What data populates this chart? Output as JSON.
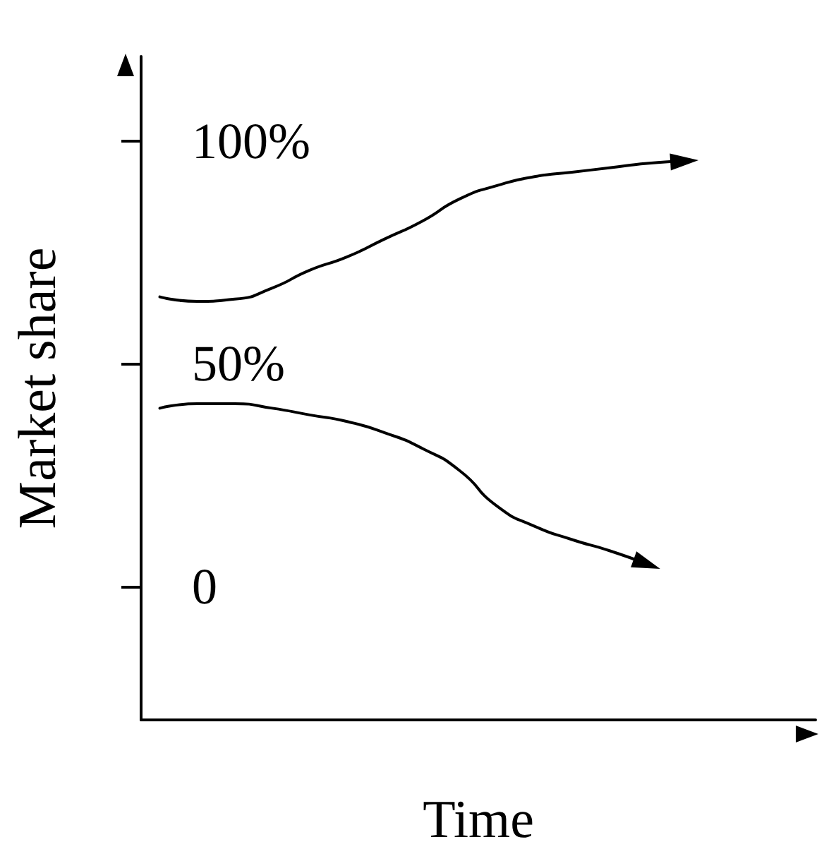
{
  "chart_data": {
    "type": "line",
    "xlabel": "Time",
    "ylabel": "Market share",
    "categories": [
      null,
      null,
      null,
      null,
      null,
      null,
      null,
      null,
      null,
      null,
      null,
      null,
      null,
      null,
      null,
      null,
      null,
      null
    ],
    "series": [
      {
        "color": "#000000",
        "values": [
          65,
          64,
          64.5,
          67,
          71,
          74,
          78,
          82,
          87,
          90,
          92,
          93,
          94,
          95,
          95.5,
          null,
          null,
          null
        ]
      },
      {
        "color": "#000000",
        "values": [
          40,
          41,
          41,
          40,
          38.5,
          37,
          34.5,
          31,
          26,
          18,
          13.5,
          10.5,
          8,
          5,
          null,
          null,
          null,
          null
        ]
      }
    ],
    "ylim": [
      -30,
      119
    ],
    "yticks": [
      {
        "value": 0,
        "label": "0"
      },
      {
        "value": 50,
        "label": "50%"
      },
      {
        "value": 100,
        "label": "100%"
      }
    ],
    "grid": false,
    "marker": "none",
    "line_style": "solid"
  }
}
